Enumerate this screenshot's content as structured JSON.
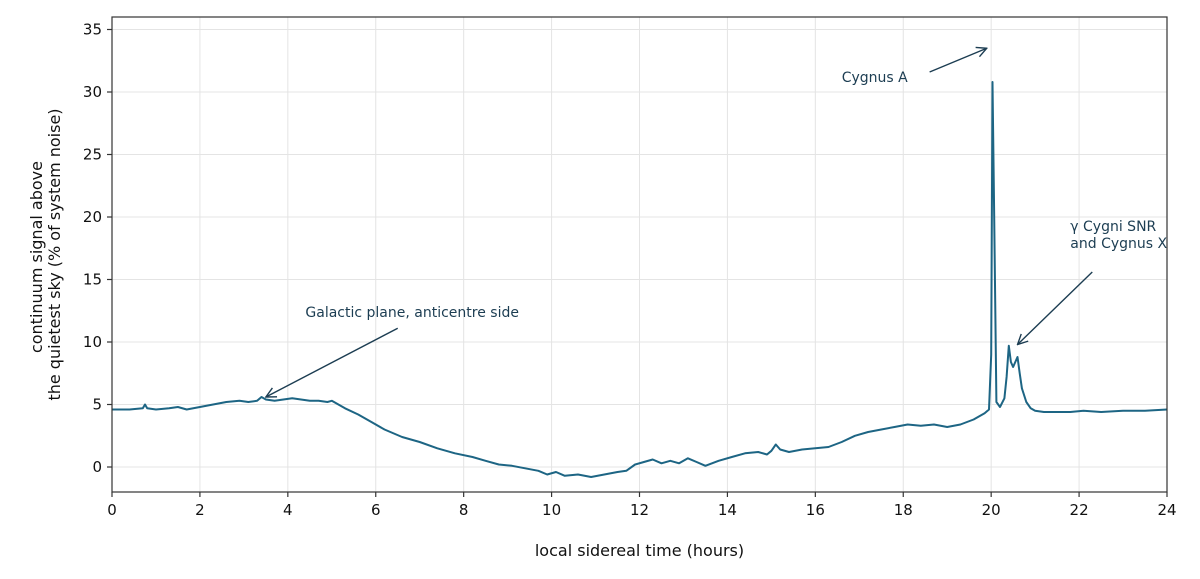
{
  "chart_data": {
    "type": "line",
    "xlabel": "local sidereal time  (hours)",
    "ylabel_lines": [
      "continuum signal above",
      "the quietest sky  (% of system noise)"
    ],
    "xlim": [
      0,
      24
    ],
    "ylim": [
      -2,
      36
    ],
    "xticks": [
      0,
      2,
      4,
      6,
      8,
      10,
      12,
      14,
      16,
      18,
      20,
      22,
      24
    ],
    "yticks": [
      0,
      5,
      10,
      15,
      20,
      25,
      30,
      35
    ],
    "grid": true,
    "line_color": "#1d6584",
    "annotation_color": "#1c3d52",
    "series": [
      {
        "x": [
          0,
          0.4,
          0.7,
          0.75,
          0.8,
          1.0,
          1.3,
          1.5,
          1.7,
          2.0,
          2.3,
          2.6,
          2.9,
          3.1,
          3.3,
          3.4,
          3.5,
          3.7,
          3.9,
          4.1,
          4.3,
          4.5,
          4.7,
          4.9,
          5.0,
          5.1,
          5.3,
          5.6,
          5.9,
          6.2,
          6.6,
          7.0,
          7.4,
          7.8,
          8.2,
          8.5,
          8.8,
          9.1,
          9.4,
          9.7,
          9.9,
          10.1,
          10.3,
          10.6,
          10.9,
          11.2,
          11.5,
          11.7,
          11.9,
          12.1,
          12.3,
          12.5,
          12.7,
          12.9,
          13.1,
          13.3,
          13.5,
          13.8,
          14.1,
          14.4,
          14.7,
          14.9,
          15.0,
          15.1,
          15.2,
          15.4,
          15.7,
          16.0,
          16.3,
          16.6,
          16.9,
          17.2,
          17.5,
          17.8,
          18.1,
          18.4,
          18.7,
          19.0,
          19.3,
          19.6,
          19.85,
          19.95,
          20.0,
          20.03,
          20.07,
          20.12,
          20.2,
          20.3,
          20.35,
          20.4,
          20.45,
          20.5,
          20.55,
          20.6,
          20.65,
          20.7,
          20.8,
          20.9,
          21.0,
          21.2,
          21.5,
          21.8,
          22.1,
          22.5,
          23.0,
          23.5,
          24.0
        ],
        "y": [
          4.6,
          4.6,
          4.7,
          5.0,
          4.7,
          4.6,
          4.7,
          4.8,
          4.6,
          4.8,
          5.0,
          5.2,
          5.3,
          5.2,
          5.3,
          5.6,
          5.4,
          5.3,
          5.4,
          5.5,
          5.4,
          5.3,
          5.3,
          5.2,
          5.3,
          5.1,
          4.7,
          4.2,
          3.6,
          3.0,
          2.4,
          2.0,
          1.5,
          1.1,
          0.8,
          0.5,
          0.2,
          0.1,
          -0.1,
          -0.3,
          -0.6,
          -0.4,
          -0.7,
          -0.6,
          -0.8,
          -0.6,
          -0.4,
          -0.3,
          0.2,
          0.4,
          0.6,
          0.3,
          0.5,
          0.3,
          0.7,
          0.4,
          0.1,
          0.5,
          0.8,
          1.1,
          1.2,
          1.0,
          1.3,
          1.8,
          1.4,
          1.2,
          1.4,
          1.5,
          1.6,
          2.0,
          2.5,
          2.8,
          3.0,
          3.2,
          3.4,
          3.3,
          3.4,
          3.2,
          3.4,
          3.8,
          4.3,
          4.6,
          9.0,
          30.8,
          20.0,
          5.2,
          4.8,
          5.5,
          7.2,
          9.7,
          8.4,
          8.0,
          8.4,
          8.8,
          7.5,
          6.3,
          5.2,
          4.7,
          4.5,
          4.4,
          4.4,
          4.4,
          4.5,
          4.4,
          4.5,
          4.5,
          4.6
        ]
      }
    ],
    "annotations": [
      {
        "lines": [
          "Galactic plane, anticentre side"
        ],
        "text_at": [
          4.4,
          12.0
        ],
        "arrow_from": [
          6.5,
          11.1
        ],
        "arrow_to": [
          3.5,
          5.6
        ]
      },
      {
        "lines": [
          "Cygnus A"
        ],
        "text_at": [
          16.6,
          30.8
        ],
        "arrow_from": [
          18.6,
          31.6
        ],
        "arrow_to": [
          19.9,
          33.5
        ]
      },
      {
        "lines": [
          "γ Cygni SNR",
          "and Cygnus X"
        ],
        "text_at": [
          21.8,
          18.9
        ],
        "arrow_from": [
          22.3,
          15.6
        ],
        "arrow_to": [
          20.6,
          9.8
        ]
      }
    ]
  }
}
